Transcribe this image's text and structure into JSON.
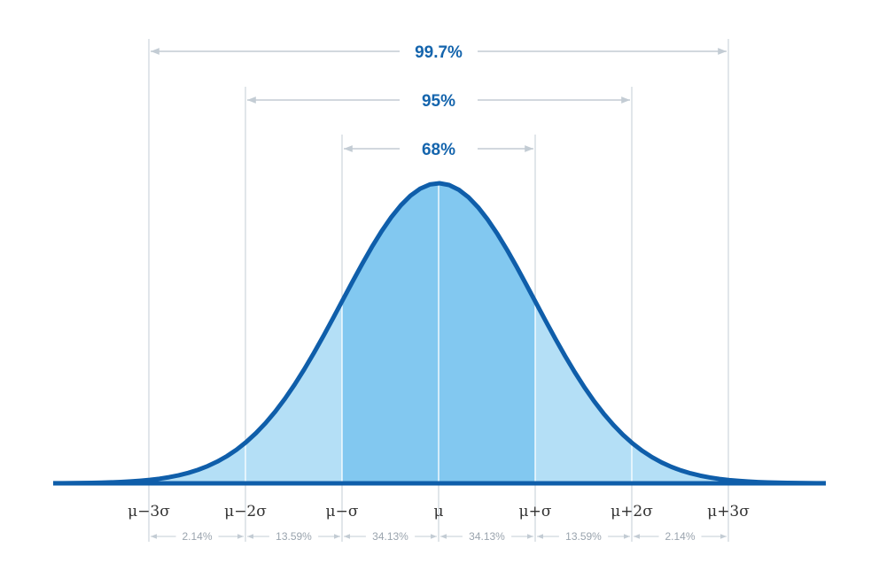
{
  "chart_data": {
    "type": "area",
    "distribution": "normal",
    "x_ticks": [
      "μ−3σ",
      "μ−2σ",
      "μ−σ",
      "μ",
      "μ+σ",
      "μ+2σ",
      "μ+3σ"
    ],
    "x_range_sigma": [
      -4,
      4
    ],
    "intervals": [
      {
        "label": "68%",
        "from": -1,
        "to": 1
      },
      {
        "label": "95%",
        "from": -2,
        "to": 2
      },
      {
        "label": "99.7%",
        "from": -3,
        "to": 3
      }
    ],
    "segments": [
      {
        "from": -3,
        "to": -2,
        "label": "2.14%"
      },
      {
        "from": -2,
        "to": -1,
        "label": "13.59%"
      },
      {
        "from": -1,
        "to": 0,
        "label": "34.13%"
      },
      {
        "from": 0,
        "to": 1,
        "label": "34.13%"
      },
      {
        "from": 1,
        "to": 2,
        "label": "13.59%"
      },
      {
        "from": 2,
        "to": 3,
        "label": "2.14%"
      }
    ],
    "colors": {
      "curve": "#0f5eaa",
      "inner_fill": "#82c8f0",
      "outer_fill": "#b4dff6",
      "interval_label": "#1565ad",
      "guide": "#c3ccd4"
    }
  }
}
